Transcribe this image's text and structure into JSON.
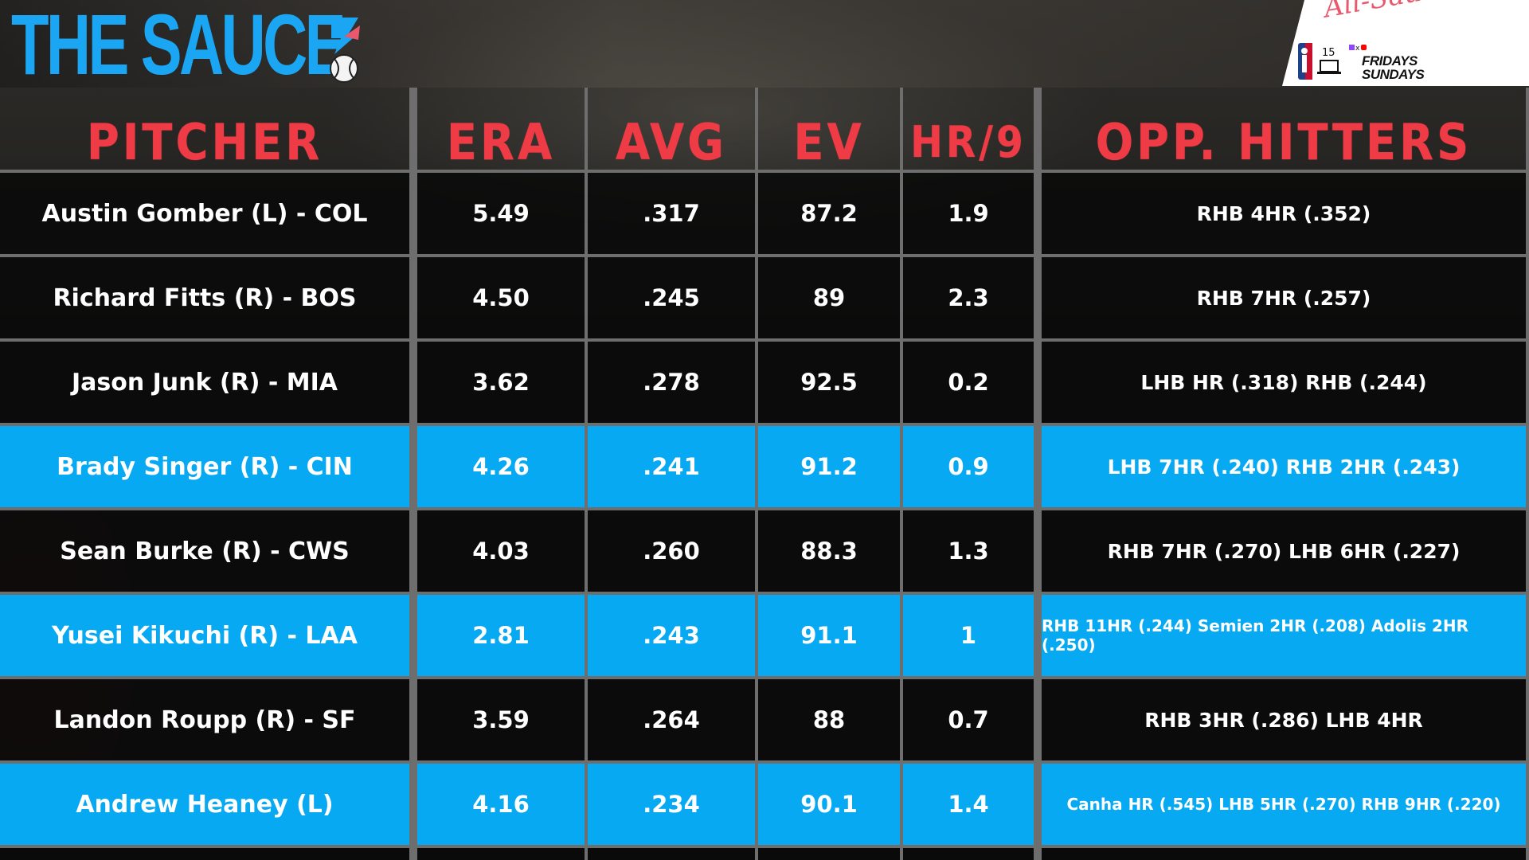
{
  "brand": {
    "title": "THE SAUCE",
    "accent_color": "#1aa6f2",
    "icons": [
      "bolt-icon",
      "baseball-icon"
    ]
  },
  "promo": {
    "script_text": "All-Sauce Team",
    "days_line1": "FRIDAYS",
    "days_line2": "SUNDAYS",
    "icons": [
      "nba-logo-icon",
      "laptop-icon",
      "twitch-icon",
      "x-icon",
      "youtube-icon"
    ]
  },
  "table": {
    "header_color": "#ee3b45",
    "highlight_color": "#07a9f2",
    "headers": {
      "pitcher": "PITCHER",
      "era": "ERA",
      "avg": "AVG",
      "ev": "EV",
      "hr9": "HR/9",
      "opp": "OPP. HITTERS"
    },
    "rows": [
      {
        "pitcher": "Austin Gomber (L) - COL",
        "era": "5.49",
        "avg": ".317",
        "ev": "87.2",
        "hr9": "1.9",
        "opp": "RHB 4HR (.352)",
        "highlighted": false
      },
      {
        "pitcher": "Richard Fitts (R) - BOS",
        "era": "4.50",
        "avg": ".245",
        "ev": "89",
        "hr9": "2.3",
        "opp": "RHB 7HR (.257)",
        "highlighted": false
      },
      {
        "pitcher": "Jason Junk (R) - MIA",
        "era": "3.62",
        "avg": ".278",
        "ev": "92.5",
        "hr9": "0.2",
        "opp": "LHB HR (.318) RHB (.244)",
        "highlighted": false
      },
      {
        "pitcher": "Brady Singer (R) - CIN",
        "era": "4.26",
        "avg": ".241",
        "ev": "91.2",
        "hr9": "0.9",
        "opp": "LHB 7HR (.240) RHB 2HR (.243)",
        "highlighted": true
      },
      {
        "pitcher": "Sean Burke (R) - CWS",
        "era": "4.03",
        "avg": ".260",
        "ev": "88.3",
        "hr9": "1.3",
        "opp": "RHB 7HR (.270) LHB 6HR (.227)",
        "highlighted": false
      },
      {
        "pitcher": "Yusei Kikuchi (R) - LAA",
        "era": "2.81",
        "avg": ".243",
        "ev": "91.1",
        "hr9": "1",
        "opp": "RHB 11HR (.244) Semien 2HR (.208) Adolis 2HR (.250)",
        "highlighted": true
      },
      {
        "pitcher": "Landon Roupp (R) - SF",
        "era": "3.59",
        "avg": ".264",
        "ev": "88",
        "hr9": "0.7",
        "opp": "RHB 3HR (.286) LHB 4HR",
        "highlighted": false
      },
      {
        "pitcher": "Andrew Heaney (L)",
        "era": "4.16",
        "avg": ".234",
        "ev": "90.1",
        "hr9": "1.4",
        "opp": "Canha HR (.545) LHB 5HR (.270) RHB 9HR (.220)",
        "highlighted": true
      }
    ]
  }
}
